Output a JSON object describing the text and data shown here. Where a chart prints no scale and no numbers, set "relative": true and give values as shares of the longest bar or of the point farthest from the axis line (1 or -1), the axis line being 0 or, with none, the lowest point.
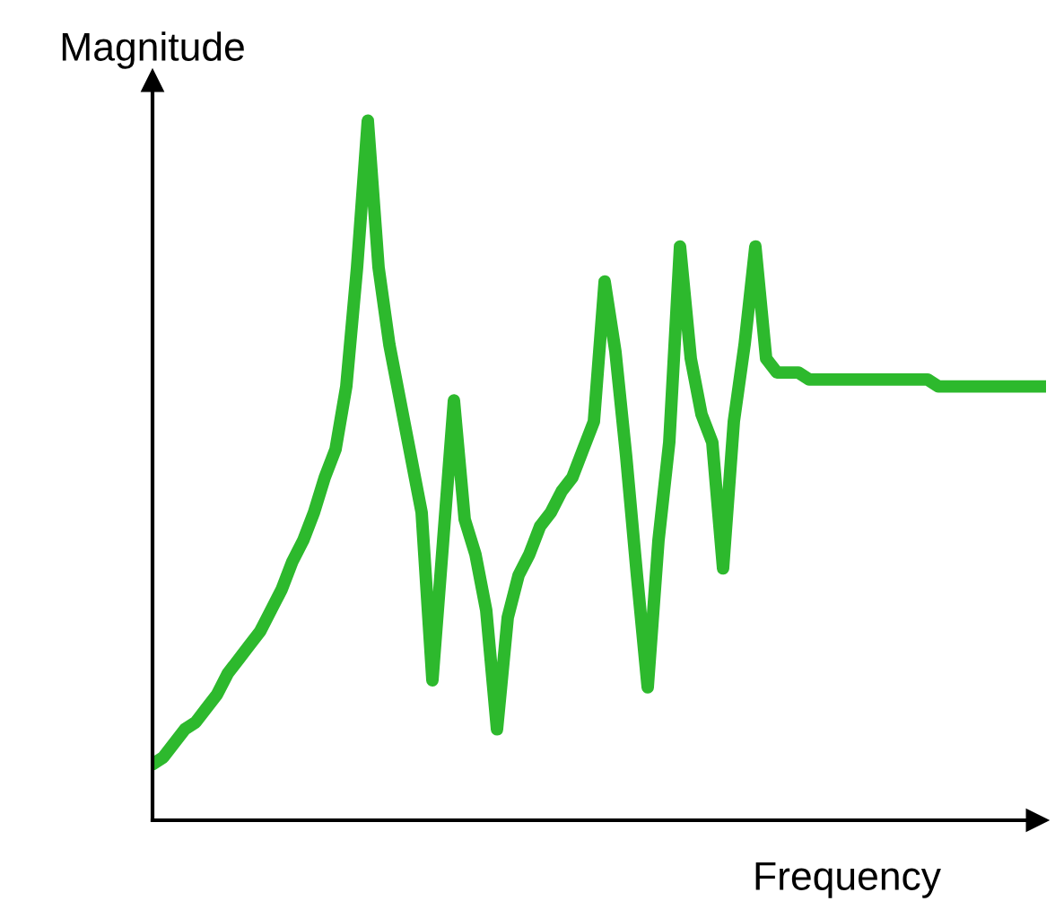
{
  "chart_data": {
    "type": "line",
    "relative": true,
    "xlabel": "Frequency",
    "ylabel": "Magnitude",
    "marker": "none",
    "line_style": "solid",
    "categories": [
      null,
      null,
      null,
      null,
      null,
      null,
      null,
      null,
      null,
      null,
      null,
      null,
      null,
      null,
      null,
      null,
      null,
      null,
      null,
      null,
      null,
      null,
      null,
      null,
      null,
      null,
      null,
      null,
      null,
      null,
      null,
      null,
      null,
      null,
      null,
      null,
      null,
      null,
      null,
      null,
      null,
      null,
      null,
      null,
      null,
      null,
      null,
      null,
      null,
      null,
      null,
      null,
      null,
      null,
      null,
      null,
      null,
      null,
      null,
      null,
      null,
      null,
      null,
      null,
      null,
      null,
      null,
      null,
      null,
      null,
      null,
      null,
      null,
      null,
      null,
      null,
      null,
      null,
      null,
      null,
      null,
      null,
      null,
      null
    ],
    "series": [
      {
        "color": "#2db92d",
        "values": [
          0.08,
          0.09,
          0.11,
          0.13,
          0.14,
          0.16,
          0.18,
          0.21,
          0.23,
          0.25,
          0.27,
          0.3,
          0.33,
          0.37,
          0.4,
          0.44,
          0.49,
          0.53,
          0.62,
          0.79,
          1.0,
          0.79,
          0.68,
          0.6,
          0.52,
          0.44,
          0.2,
          0.4,
          0.6,
          0.43,
          0.38,
          0.3,
          0.13,
          0.29,
          0.35,
          0.38,
          0.42,
          0.44,
          0.47,
          0.49,
          0.53,
          0.57,
          0.77,
          0.67,
          0.52,
          0.35,
          0.19,
          0.4,
          0.54,
          0.82,
          0.66,
          0.58,
          0.54,
          0.36,
          0.57,
          0.68,
          0.82,
          0.66,
          0.64,
          0.64,
          0.64,
          0.63,
          0.63,
          0.63,
          0.63,
          0.63,
          0.63,
          0.63,
          0.63,
          0.63,
          0.63,
          0.63,
          0.63,
          0.62,
          0.62,
          0.62,
          0.62,
          0.62,
          0.62,
          0.62,
          0.62,
          0.62,
          0.62,
          0.62
        ]
      }
    ]
  }
}
